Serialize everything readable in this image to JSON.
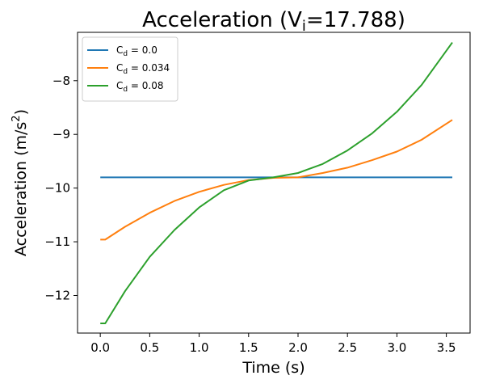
{
  "chart_data": {
    "type": "line",
    "title_prefix": "Acceleration (V",
    "title_sub": "i",
    "title_suffix": "=17.788)",
    "xlabel": "Time (s)",
    "ylabel_prefix": "Acceleration (m/s",
    "ylabel_sup": "2",
    "ylabel_suffix": ")",
    "xlim": [
      -0.23,
      3.74
    ],
    "ylim": [
      -12.7,
      -7.1
    ],
    "xticks": [
      0.0,
      0.5,
      1.0,
      1.5,
      2.0,
      2.5,
      3.0,
      3.5
    ],
    "xtick_labels": [
      "0.0",
      "0.5",
      "1.0",
      "1.5",
      "2.0",
      "2.5",
      "3.0",
      "3.5"
    ],
    "yticks": [
      -12,
      -11,
      -10,
      -9,
      -8
    ],
    "ytick_labels": [
      "−12",
      "−11",
      "−10",
      "−9",
      "−8"
    ],
    "grid": false,
    "legend_position": "upper-left",
    "series": [
      {
        "name_base": "C",
        "name_sub": "d",
        "name_suffix": " = 0.0",
        "color": "#1f77b4",
        "x": [
          0.0,
          0.5,
          1.0,
          1.5,
          2.0,
          2.5,
          3.0,
          3.56
        ],
        "y": [
          -9.8,
          -9.8,
          -9.8,
          -9.8,
          -9.8,
          -9.8,
          -9.8,
          -9.8
        ]
      },
      {
        "name_base": "C",
        "name_sub": "d",
        "name_suffix": " = 0.034",
        "color": "#ff7f0e",
        "x": [
          0.0,
          0.05,
          0.25,
          0.5,
          0.75,
          1.0,
          1.25,
          1.5,
          1.75,
          2.0,
          2.25,
          2.5,
          2.75,
          3.0,
          3.25,
          3.56
        ],
        "y": [
          -10.96,
          -10.96,
          -10.72,
          -10.46,
          -10.24,
          -10.07,
          -9.94,
          -9.85,
          -9.81,
          -9.8,
          -9.72,
          -9.62,
          -9.48,
          -9.32,
          -9.1,
          -8.73
        ]
      },
      {
        "name_base": "C",
        "name_sub": "d",
        "name_suffix": " = 0.08",
        "color": "#2ca02c",
        "x": [
          0.0,
          0.05,
          0.25,
          0.5,
          0.75,
          1.0,
          1.25,
          1.5,
          1.75,
          2.0,
          2.25,
          2.5,
          2.75,
          3.0,
          3.25,
          3.56
        ],
        "y": [
          -12.52,
          -12.52,
          -11.92,
          -11.28,
          -10.78,
          -10.36,
          -10.04,
          -9.86,
          -9.8,
          -9.72,
          -9.55,
          -9.3,
          -8.98,
          -8.58,
          -8.08,
          -7.29
        ]
      }
    ]
  }
}
